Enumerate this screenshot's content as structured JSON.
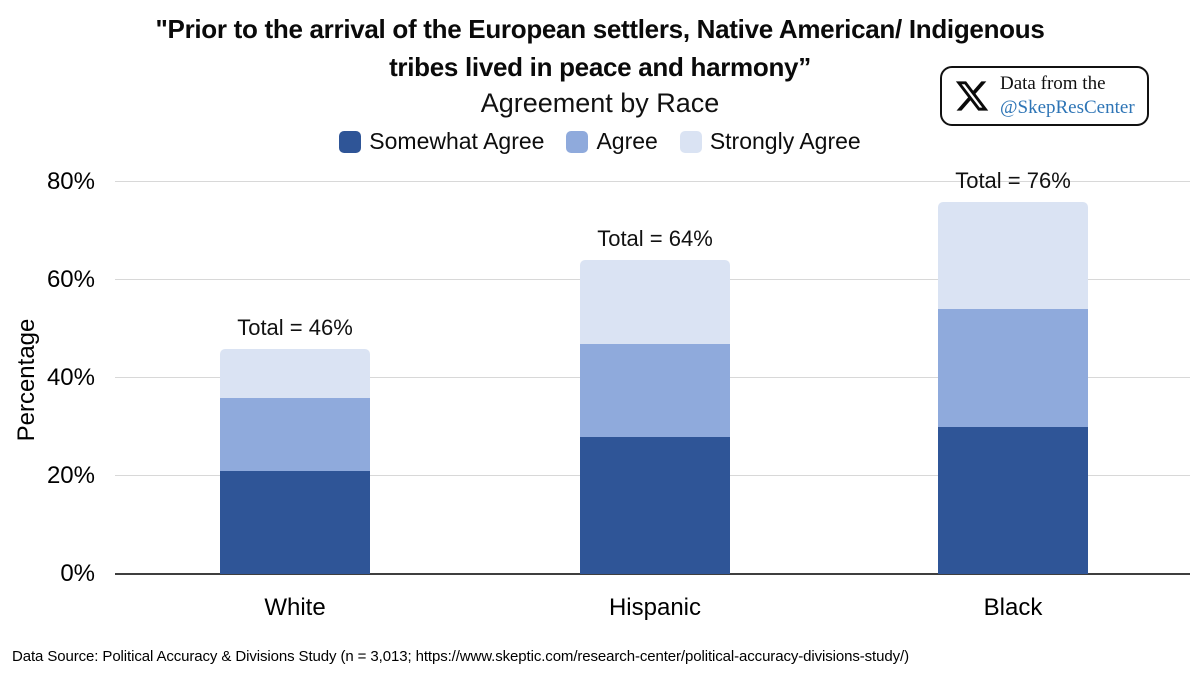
{
  "header": {
    "title_line1": "\"Prior to the arrival of the European settlers, Native American/ Indigenous",
    "title_line2": "tribes lived in peace and harmony”",
    "subtitle": "Agreement by Race"
  },
  "badge": {
    "icon": "x-logo",
    "line1": "Data from the",
    "handle": "@SkepResCenter",
    "handle_color": "#2E75B6"
  },
  "footer": {
    "source": "Data Source: Political Accuracy & Divisions Study (n = 3,013; https://www.skeptic.com/research-center/political-accuracy-divisions-study/)"
  },
  "colors": {
    "somewhat_agree": "#2F5597",
    "agree": "#8FAADC",
    "strongly_agree": "#DAE3F3",
    "gridline": "#D8D8D8",
    "axis_line": "#3F3F3F"
  },
  "chart_data": {
    "type": "bar",
    "subtype": "stacked",
    "title": "\"Prior to the arrival of the European settlers, Native American/ Indigenous tribes lived in peace and harmony” — Agreement by Race",
    "categories": [
      "White",
      "Hispanic",
      "Black"
    ],
    "series": [
      {
        "name": "Somewhat Agree",
        "color": "#2F5597",
        "values": [
          21,
          28,
          30
        ]
      },
      {
        "name": "Agree",
        "color": "#8FAADC",
        "values": [
          15,
          19,
          24
        ]
      },
      {
        "name": "Strongly Agree",
        "color": "#DAE3F3",
        "values": [
          10,
          17,
          22
        ]
      }
    ],
    "totals": [
      46,
      64,
      76
    ],
    "total_labels": [
      "Total = 46%",
      "Total = 64%",
      "Total = 76%"
    ],
    "xlabel": "",
    "ylabel": "Percentage",
    "ylim": [
      0,
      80
    ],
    "yticks": [
      0,
      20,
      40,
      60,
      80
    ],
    "ytick_labels": [
      "0%",
      "20%",
      "40%",
      "60%",
      "80%"
    ],
    "grid": true,
    "legend_position": "top"
  }
}
